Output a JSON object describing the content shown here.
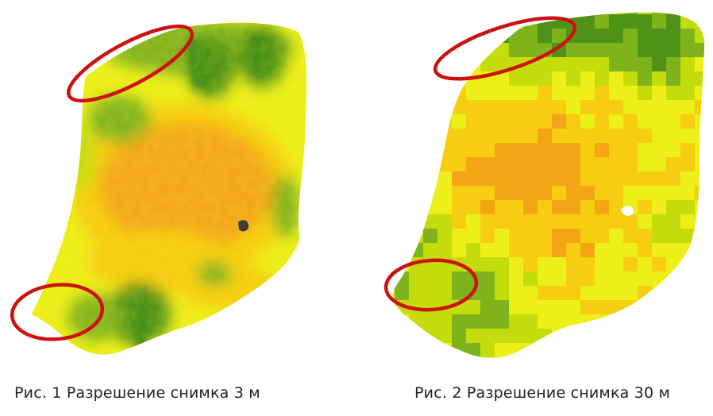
{
  "figures": [
    {
      "caption": "Рис. 1 Разрешение снимка 3 м",
      "colors": {
        "low": "#2f7d1a",
        "mid_green": "#7fb31c",
        "yellow_green": "#c4dc0c",
        "yellow": "#ecef18",
        "orange_yellow": "#f6cd10",
        "orange": "#f3a515",
        "marker": "#cc1111"
      }
    },
    {
      "caption": "Рис. 2 Разрешение снимка 30 м",
      "colors": {
        "low": "#2f7d1a",
        "mid_green": "#7fb31c",
        "yellow_green": "#c4dc0c",
        "yellow": "#ecef18",
        "orange_yellow": "#f6cd10",
        "orange": "#f3a515",
        "marker": "#cc1111"
      }
    }
  ]
}
